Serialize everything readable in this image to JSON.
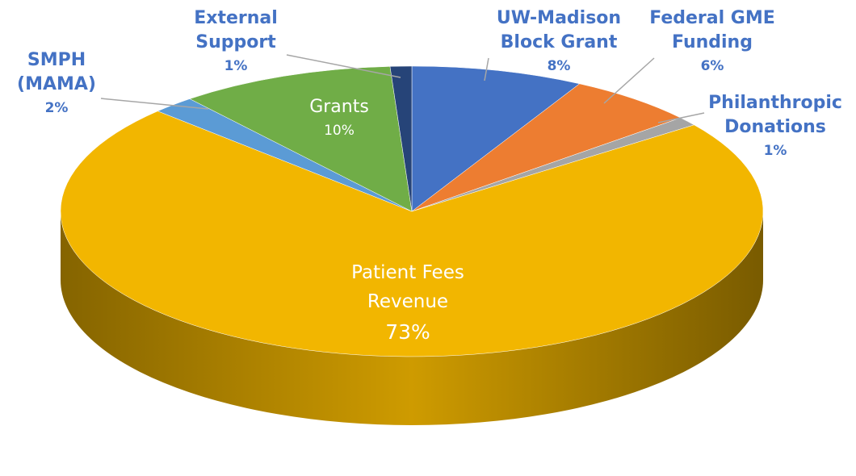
{
  "chart_data": {
    "type": "pie3d",
    "categories": [
      "UW-Madison Block Grant",
      "Federal GME Funding",
      "Philanthropic Donations",
      "Patient Fees Revenue",
      "SMPH (MAMA)",
      "Grants",
      "External Support"
    ],
    "values": [
      8,
      6,
      1,
      73,
      2,
      10,
      1
    ],
    "value_labels": [
      "8%",
      "6%",
      "1%",
      "73%",
      "2%",
      "10%",
      "1%"
    ],
    "colors": [
      "#4472c4",
      "#ed7d31",
      "#a5a5a5",
      "#f2b600",
      "#5b9bd5",
      "#70ad47",
      "#264478"
    ]
  }
}
